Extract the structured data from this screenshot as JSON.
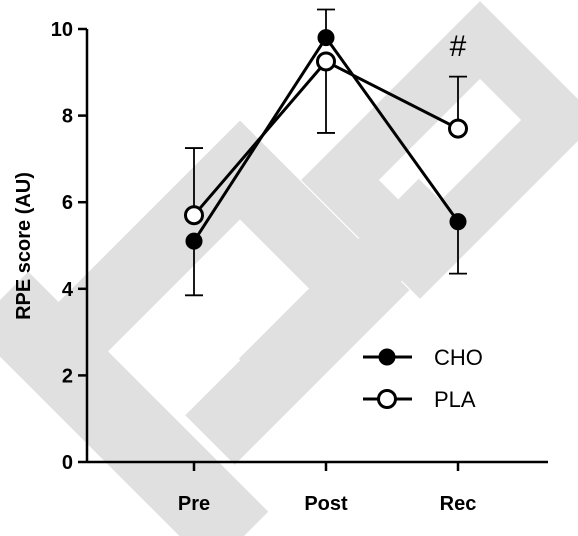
{
  "chart_data": {
    "type": "line",
    "categories": [
      "Pre",
      "Post",
      "Rec"
    ],
    "ylabel": "RPE score (AU)",
    "xlabel": "",
    "ylim": [
      0,
      10
    ],
    "yticks": [
      0,
      2,
      4,
      6,
      8,
      10
    ],
    "grid": false,
    "legend_position": "bottom-right",
    "series": [
      {
        "name": "CHO",
        "marker": "filled-circle",
        "values": [
          5.1,
          9.8,
          5.55
        ],
        "error_lower": [
          1.25,
          0,
          1.2
        ],
        "error_upper": [
          0,
          0.65,
          0
        ]
      },
      {
        "name": "PLA",
        "marker": "open-circle",
        "values": [
          5.7,
          9.25,
          7.7
        ],
        "error_lower": [
          0,
          1.65,
          0
        ],
        "error_upper": [
          1.55,
          0,
          1.2
        ]
      }
    ],
    "annotations": [
      {
        "category": "Rec",
        "text": "#"
      }
    ],
    "colors": {
      "line": "#000000",
      "marker_fill_open": "#ffffff",
      "watermark": "#e0e0e0"
    }
  }
}
